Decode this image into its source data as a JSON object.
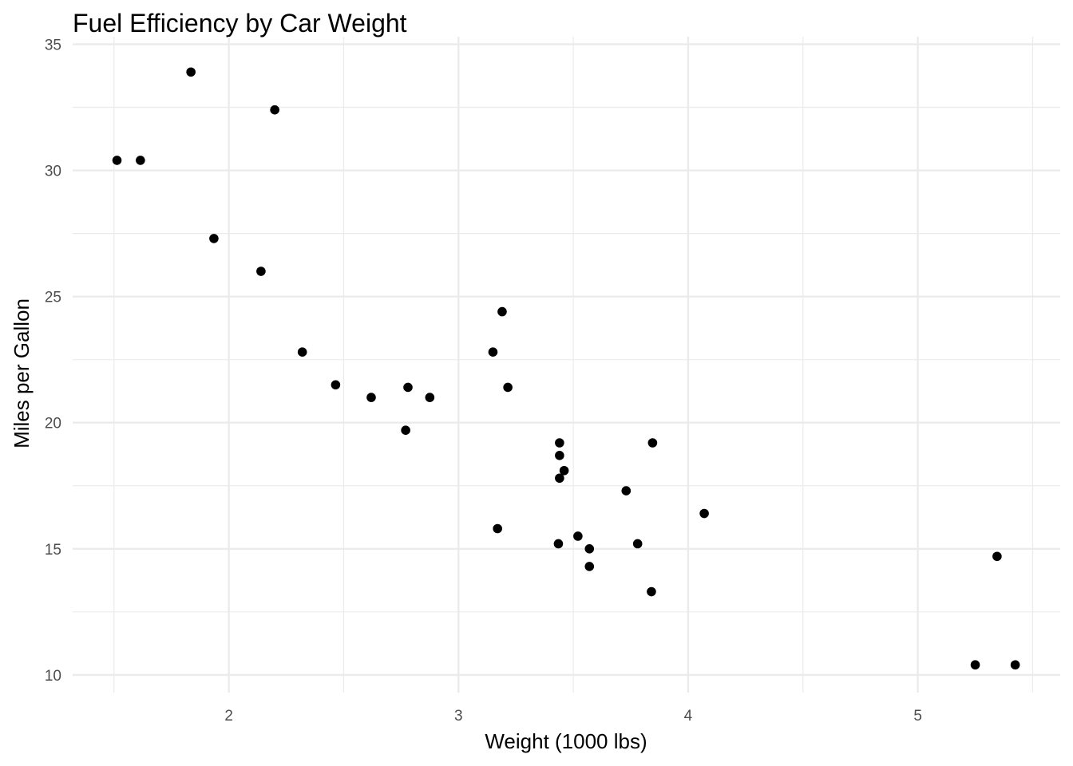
{
  "chart_data": {
    "type": "scatter",
    "title": "Fuel Efficiency by Car Weight",
    "xlabel": "Weight (1000 lbs)",
    "ylabel": "Miles per Gallon",
    "xlim": [
      1.32,
      5.62
    ],
    "ylim": [
      9.3,
      35.3
    ],
    "xticks": [
      2,
      3,
      4,
      5
    ],
    "xtick_labels": [
      "2",
      "3",
      "4",
      "5"
    ],
    "yticks": [
      10,
      15,
      20,
      25,
      30,
      35
    ],
    "ytick_labels": [
      "10",
      "15",
      "20",
      "25",
      "30",
      "35"
    ],
    "x_minor": [
      1.5,
      2.5,
      3.5,
      4.5,
      5.5
    ],
    "y_minor": [
      12.5,
      17.5,
      22.5,
      27.5,
      32.5
    ],
    "grid": true,
    "legend": "none",
    "point_color": "#000000",
    "points": [
      {
        "x": 2.62,
        "y": 21.0
      },
      {
        "x": 2.875,
        "y": 21.0
      },
      {
        "x": 2.32,
        "y": 22.8
      },
      {
        "x": 3.215,
        "y": 21.4
      },
      {
        "x": 3.44,
        "y": 18.7
      },
      {
        "x": 3.46,
        "y": 18.1
      },
      {
        "x": 3.57,
        "y": 14.3
      },
      {
        "x": 3.19,
        "y": 24.4
      },
      {
        "x": 3.15,
        "y": 22.8
      },
      {
        "x": 3.44,
        "y": 19.2
      },
      {
        "x": 3.44,
        "y": 17.8
      },
      {
        "x": 4.07,
        "y": 16.4
      },
      {
        "x": 3.73,
        "y": 17.3
      },
      {
        "x": 3.78,
        "y": 15.2
      },
      {
        "x": 5.25,
        "y": 10.4
      },
      {
        "x": 5.424,
        "y": 10.4
      },
      {
        "x": 5.345,
        "y": 14.7
      },
      {
        "x": 2.2,
        "y": 32.4
      },
      {
        "x": 1.615,
        "y": 30.4
      },
      {
        "x": 1.835,
        "y": 33.9
      },
      {
        "x": 2.465,
        "y": 21.5
      },
      {
        "x": 3.52,
        "y": 15.5
      },
      {
        "x": 3.435,
        "y": 15.2
      },
      {
        "x": 3.84,
        "y": 13.3
      },
      {
        "x": 3.845,
        "y": 19.2
      },
      {
        "x": 1.935,
        "y": 27.3
      },
      {
        "x": 2.14,
        "y": 26.0
      },
      {
        "x": 1.513,
        "y": 30.4
      },
      {
        "x": 3.17,
        "y": 15.8
      },
      {
        "x": 2.77,
        "y": 19.7
      },
      {
        "x": 3.57,
        "y": 15.0
      },
      {
        "x": 2.78,
        "y": 21.4
      }
    ]
  }
}
